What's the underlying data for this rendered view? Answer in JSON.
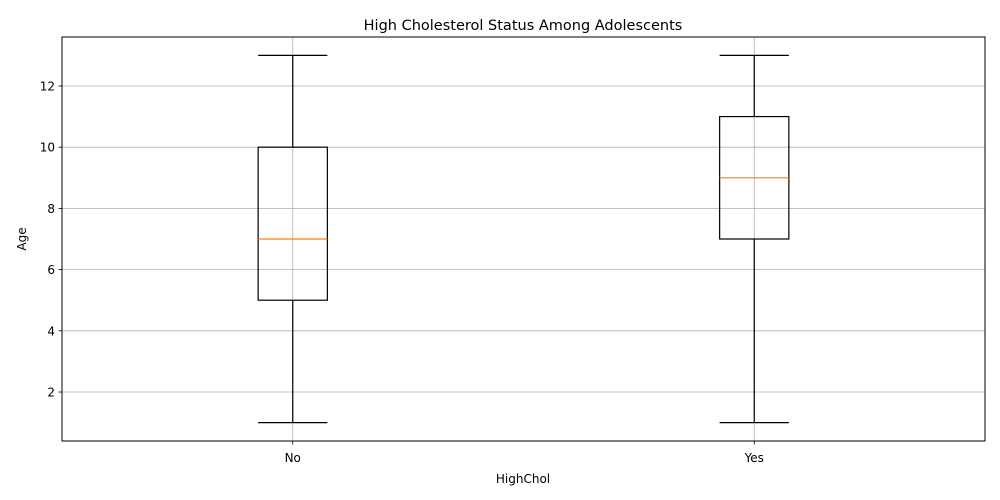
{
  "chart_data": {
    "type": "box",
    "title": "High Cholesterol Status Among Adolescents",
    "xlabel": "HighChol",
    "ylabel": "Age",
    "categories": [
      "No",
      "Yes"
    ],
    "boxes": [
      {
        "category": "No",
        "whisker_low": 1,
        "q1": 5,
        "median": 7,
        "q3": 10,
        "whisker_high": 13
      },
      {
        "category": "Yes",
        "whisker_low": 1,
        "q1": 7,
        "median": 9,
        "q3": 11,
        "whisker_high": 13
      }
    ],
    "yticks": [
      2,
      4,
      6,
      8,
      10,
      12
    ],
    "ylim": [
      0.4,
      13.6
    ],
    "grid": true,
    "colors": {
      "box": "#000000",
      "median": "#ff7f0e",
      "grid": "#b0b0b0"
    }
  }
}
